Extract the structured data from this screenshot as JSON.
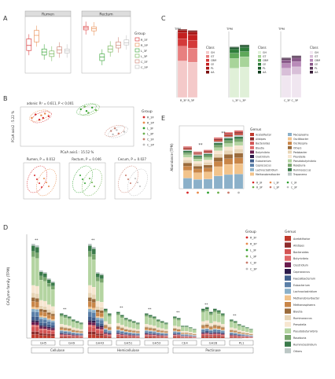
{
  "panels": {
    "A": {
      "letter": "A",
      "titles": [
        "Rumen",
        "Rectum"
      ],
      "legend_title": "Group",
      "legend": [
        "R_3F",
        "R_3P",
        "L_3F",
        "L_3P",
        "C_3F",
        "C_3P"
      ]
    },
    "B": {
      "letter": "B",
      "top_text": "adonis: R² = 0.611, P < 0.001",
      "legend_title": "Group",
      "legend": [
        "R_3F",
        "R_3P",
        "L_3F",
        "L_3P",
        "C_3F",
        "C_3P"
      ],
      "axis_x": "PCoA axis1 : 15.52 %",
      "axis_y": "PCoA axis2 : 5.22 %",
      "sub": [
        "Rumen, P = 0.012",
        "Rectum, P = 0.046",
        "Cecum, P = 0.027"
      ]
    },
    "C": {
      "letter": "C",
      "ylabel": "TPM",
      "xlabels": [
        "R_3F R_3P",
        "L_3F L_3P",
        "C_3F C_3P"
      ],
      "legend_title": "Class",
      "legend1": [
        "GH",
        "GT",
        "CBM",
        "CE",
        "PL",
        "AA"
      ],
      "legend2": [
        "GH",
        "GT",
        "CBM",
        "CE",
        "PL",
        "AA"
      ],
      "legend3": [
        "GH",
        "GT",
        "CBM",
        "CE",
        "PL",
        "AA"
      ]
    },
    "E": {
      "letter": "E",
      "ylabel": "Abundance (TPM)",
      "legend_title": "Genus",
      "legend_col1": [
        "Acetatifactor",
        "Alistipes",
        "Bacteroides",
        "Blautia",
        "Butyrivibrio",
        "Clostridium",
        "Eubacterium",
        "Coprococcus",
        "Lachnoclostridium",
        "Methanobrevibacter"
      ],
      "legend_col2": [
        "Mycoplasma",
        "Oscillibacter",
        "Oscillospira",
        "Others",
        "Pedobacter",
        "Prevotella",
        "Pseudobutyrivibrio",
        "Roseburia",
        "Ruminococcus",
        "Treponema"
      ],
      "legend_groups": [
        "R_3F",
        "L_3F",
        "C_3F",
        "R_3P",
        "L_3P",
        "C_3P"
      ],
      "sig": "**"
    },
    "D": {
      "letter": "D",
      "ylabel": "CAZyme family (TPM)",
      "legend_title": "Group",
      "legend": [
        "R_3F",
        "R_3P",
        "L_3F",
        "L_3P",
        "C_3F",
        "C_3P"
      ],
      "genus_title": "Genus",
      "genera": [
        "Acetatifactor",
        "Alistipes",
        "Bacteroides",
        "Butyrivibrio",
        "Clostridium",
        "Coprococcus",
        "Faecalibacterium",
        "Eubacterium",
        "Lachnoclostridium",
        "Methanobrevibacter",
        "Methanosphaera",
        "Blautia",
        "Ruminococcus",
        "Prevotella",
        "Pseudobutyrivibrio",
        "Roseburia",
        "Ruminiclostridium",
        "Others"
      ],
      "families": [
        "GH5",
        "GH9",
        "GH43",
        "GH51",
        "GH53",
        "CE4",
        "GH28",
        "PL1"
      ],
      "categories": [
        "Cellulase",
        "Hemicellulose",
        "Pectinase"
      ],
      "sig": "**"
    }
  },
  "colors": {
    "groups": [
      "#d62728",
      "#e8894b",
      "#2ca02c",
      "#6ab04c",
      "#c97a6a",
      "#bbbbbb"
    ],
    "chartC": [
      "#f4c9c9",
      "#e88080",
      "#d43a3a",
      "#c41f1f",
      "#a81515",
      "#7a0f0f"
    ],
    "chartC2": [
      "#e0f0d8",
      "#a8d49a",
      "#5fa85a",
      "#2e7d3a",
      "#1a5a2a",
      "#0e3a1a"
    ],
    "chartC3": [
      "#f0e6f0",
      "#d8bfd8",
      "#b88ab8",
      "#8a5a8a",
      "#5a3a5a",
      "#3a1f3a"
    ],
    "genus": [
      "#c0392b",
      "#8e2b2b",
      "#d35454",
      "#e06666",
      "#6a1b4d",
      "#2c1a4a",
      "#3f5e8c",
      "#5a7fa8",
      "#8bb0c9",
      "#f2c38b",
      "#c98648",
      "#9a6b3b",
      "#e7d4b5",
      "#f7e6d0",
      "#b4d4a1",
      "#78a66d",
      "#3a7a4a",
      "#bcc7c5"
    ]
  },
  "chart_data": [
    {
      "type": "box",
      "panel": "A",
      "title": "Rumen",
      "categories": [
        "R_3F",
        "R_3P",
        "L_3F",
        "L_3P",
        "C_3F",
        "C_3P"
      ],
      "median": [
        0.55,
        0.75,
        0.42,
        0.38,
        0.46,
        0.44
      ],
      "q1": [
        0.45,
        0.62,
        0.36,
        0.33,
        0.4,
        0.4
      ],
      "q3": [
        0.68,
        0.85,
        0.48,
        0.44,
        0.52,
        0.48
      ]
    },
    {
      "type": "box",
      "panel": "A",
      "title": "Rectum",
      "categories": [
        "R_3F",
        "R_3P",
        "L_3F",
        "L_3P",
        "C_3F",
        "C_3P"
      ],
      "median": [
        0.9,
        0.88,
        0.32,
        0.48,
        0.55,
        0.6
      ],
      "q1": [
        0.86,
        0.84,
        0.25,
        0.42,
        0.5,
        0.56
      ],
      "q3": [
        0.93,
        0.92,
        0.38,
        0.54,
        0.62,
        0.66
      ]
    },
    {
      "type": "scatter",
      "panel": "B",
      "series": [
        {
          "name": "R_3F",
          "points": [
            [
              -0.18,
              0.1
            ],
            [
              -0.22,
              0.14
            ],
            [
              -0.15,
              0.12
            ],
            [
              -0.2,
              0.08
            ]
          ]
        },
        {
          "name": "R_3P",
          "points": [
            [
              -0.19,
              0.13
            ],
            [
              -0.24,
              0.1
            ],
            [
              -0.17,
              0.15
            ]
          ]
        },
        {
          "name": "L_3F",
          "points": [
            [
              0.05,
              0.18
            ],
            [
              0.08,
              0.22
            ],
            [
              0.02,
              0.2
            ]
          ]
        },
        {
          "name": "L_3P",
          "points": [
            [
              0.06,
              0.16
            ],
            [
              0.1,
              0.19
            ],
            [
              0.04,
              0.23
            ]
          ]
        },
        {
          "name": "C_3F",
          "points": [
            [
              0.18,
              -0.05
            ],
            [
              0.22,
              -0.08
            ],
            [
              0.2,
              -0.02
            ]
          ]
        },
        {
          "name": "C_3P",
          "points": [
            [
              0.21,
              -0.04
            ],
            [
              0.25,
              -0.06
            ],
            [
              0.19,
              -0.09
            ]
          ]
        }
      ]
    },
    {
      "type": "bar",
      "panel": "C",
      "stacked": true,
      "groups": [
        "R_3F",
        "R_3P",
        "L_3F",
        "L_3P",
        "C_3F",
        "C_3P"
      ],
      "series": [
        {
          "name": "GH",
          "values": [
            15000,
            14500,
            12000,
            12500,
            9000,
            9500
          ]
        },
        {
          "name": "GT",
          "values": [
            6000,
            5800,
            4000,
            4200,
            3000,
            3100
          ]
        },
        {
          "name": "CBM",
          "values": [
            3000,
            3100,
            2200,
            2100,
            2000,
            2100
          ]
        },
        {
          "name": "CE",
          "values": [
            2500,
            2400,
            1500,
            1600,
            1400,
            1500
          ]
        },
        {
          "name": "PL",
          "values": [
            1000,
            1100,
            700,
            800,
            600,
            700
          ]
        },
        {
          "name": "AA",
          "values": [
            500,
            600,
            400,
            400,
            300,
            300
          ]
        }
      ]
    },
    {
      "type": "bar",
      "panel": "E",
      "stacked": true,
      "groups": [
        "R_3F",
        "L_3F",
        "C_3F",
        "R_3P",
        "L_3P",
        "C_3P"
      ],
      "totals": [
        12000,
        10500,
        11000,
        14500,
        16000,
        16500
      ]
    },
    {
      "type": "bar",
      "panel": "D",
      "stacked": true,
      "families": [
        "GH5",
        "GH9",
        "GH43",
        "GH51",
        "GH53",
        "CE4",
        "GH28",
        "PL1"
      ],
      "totals": [
        [
          600,
          590,
          430,
          420,
          380,
          360
        ],
        [
          160,
          150,
          140,
          120,
          110,
          100
        ],
        [
          600,
          580,
          420,
          410,
          190,
          160
        ],
        [
          170,
          150,
          130,
          120,
          110,
          100
        ],
        [
          160,
          150,
          140,
          120,
          110,
          100
        ],
        [
          140,
          130,
          80,
          80,
          70,
          60
        ],
        [
          190,
          200,
          170,
          190,
          180,
          160
        ],
        [
          120,
          110,
          90,
          80,
          70,
          60
        ]
      ]
    }
  ]
}
